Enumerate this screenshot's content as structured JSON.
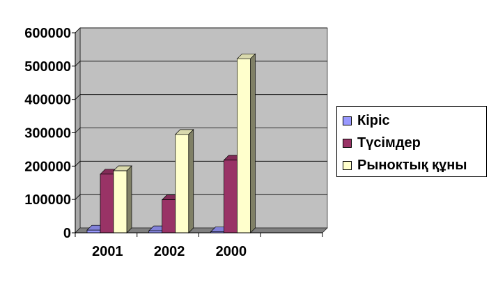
{
  "chart_data": {
    "type": "bar",
    "categories": [
      "2001",
      "2002",
      "2000"
    ],
    "series": [
      {
        "name": "Кіріс",
        "values": [
          8000,
          6000,
          3000
        ],
        "color": "#9999FF"
      },
      {
        "name": "Түсімдер",
        "values": [
          176000,
          99000,
          218000
        ],
        "color": "#993366"
      },
      {
        "name": "Рыноктық құны",
        "values": [
          186000,
          295000,
          522000
        ],
        "color": "#FFFFCC"
      }
    ],
    "yticks": [
      "0",
      "100000",
      "200000",
      "300000",
      "400000",
      "500000",
      "600000"
    ],
    "ylim": [
      0,
      600000
    ],
    "grid": true,
    "legend_position": "right",
    "wall_color": "#C0C0C0"
  }
}
